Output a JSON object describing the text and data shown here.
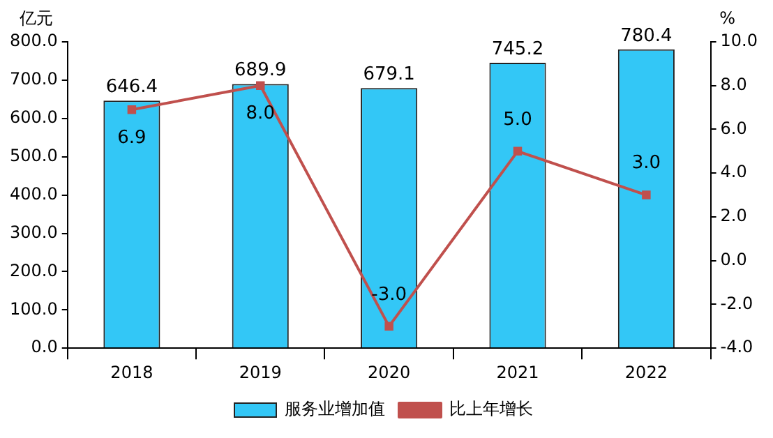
{
  "chart_data": {
    "type": "bar",
    "categories": [
      "2018",
      "2019",
      "2020",
      "2021",
      "2022"
    ],
    "series": [
      {
        "name": "服务业增加值",
        "color": "#33c7f6",
        "values": [
          646.4,
          689.9,
          679.1,
          745.2,
          780.4
        ],
        "value_labels": [
          "646.4",
          "689.9",
          "679.1",
          "745.2",
          "780.4"
        ]
      },
      {
        "name": "比上年增长",
        "type": "line",
        "axis": "y2",
        "color": "#c0504d",
        "marker": "square",
        "values": [
          6.9,
          8.0,
          -3.0,
          5.0,
          3.0
        ],
        "value_labels": [
          "6.9",
          "8.0",
          "-3.0",
          "5.0",
          "3.0"
        ]
      }
    ],
    "ylabel": "亿元",
    "y2label": "%",
    "ylim": [
      0,
      800
    ],
    "yticks": [
      {
        "value": 0,
        "label": "0.0"
      },
      {
        "value": 100,
        "label": "100.0"
      },
      {
        "value": 200,
        "label": "200.0"
      },
      {
        "value": 300,
        "label": "300.0"
      },
      {
        "value": 400,
        "label": "400.0"
      },
      {
        "value": 500,
        "label": "500.0"
      },
      {
        "value": 600,
        "label": "600.0"
      },
      {
        "value": 700,
        "label": "700.0"
      },
      {
        "value": 800,
        "label": "800.0"
      }
    ],
    "y2lim": [
      -4,
      10
    ],
    "y2ticks": [
      {
        "value": -4,
        "label": "-4.0"
      },
      {
        "value": -2,
        "label": "-2.0"
      },
      {
        "value": 0,
        "label": "0.0"
      },
      {
        "value": 2,
        "label": "2.0"
      },
      {
        "value": 4,
        "label": "4.0"
      },
      {
        "value": 6,
        "label": "6.0"
      },
      {
        "value": 8,
        "label": "8.0"
      },
      {
        "value": 10,
        "label": "10.0"
      }
    ],
    "grid": false,
    "legend": "bottom"
  }
}
